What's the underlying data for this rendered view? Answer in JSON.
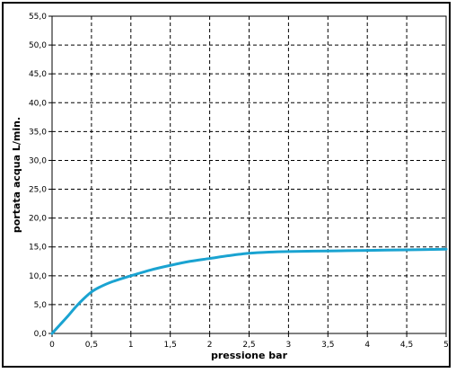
{
  "chart_data": {
    "type": "line",
    "title": "",
    "xlabel": "pressione  bar",
    "ylabel": "portata acqua  L/min.",
    "xlim": [
      0,
      5
    ],
    "ylim": [
      0,
      55
    ],
    "x_ticks": [
      0,
      0.5,
      1,
      1.5,
      2,
      2.5,
      3,
      3.5,
      4,
      4.5,
      5
    ],
    "x_tick_labels": [
      "0",
      "0,5",
      "1",
      "1,5",
      "2",
      "2,5",
      "3",
      "3,5",
      "4",
      "4,5",
      "5"
    ],
    "y_ticks": [
      0,
      5,
      10,
      15,
      20,
      25,
      30,
      35,
      40,
      45,
      50,
      55
    ],
    "y_tick_labels": [
      "0,0",
      "5,0",
      "10,0",
      "15,0",
      "20,0",
      "25,0",
      "30,0",
      "35,0",
      "40,0",
      "45,0",
      "50,0",
      "55,0"
    ],
    "grid": true,
    "grid_style": "dashed",
    "legend": "none",
    "line_color": "#1aa3d1",
    "series": [
      {
        "x": [
          0,
          0.1,
          0.2,
          0.3,
          0.4,
          0.5,
          0.6,
          0.75,
          1,
          1.25,
          1.5,
          1.75,
          2,
          2.25,
          2.5,
          2.75,
          3,
          3.5,
          4,
          4.5,
          5
        ],
        "values": [
          0,
          1.5,
          3,
          4.6,
          6.0,
          7.2,
          8.0,
          8.9,
          10.0,
          11.0,
          11.8,
          12.5,
          13.0,
          13.5,
          13.9,
          14.1,
          14.2,
          14.3,
          14.4,
          14.5,
          14.6
        ]
      }
    ]
  }
}
